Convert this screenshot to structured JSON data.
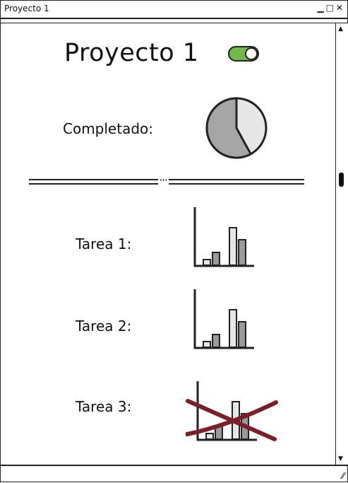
{
  "window": {
    "title": "Proyecto 1",
    "controls": {
      "minimize": "▁",
      "maximize": "□",
      "close": "✕"
    }
  },
  "main": {
    "heading": "Proyecto 1",
    "toggle_on": true,
    "completed_label": "Completado:",
    "pie_completed_fraction": 0.58,
    "tasks": [
      {
        "label": "Tarea 1:",
        "crossed_out": false
      },
      {
        "label": "Tarea 2:",
        "crossed_out": false
      },
      {
        "label": "Tarea 3:",
        "crossed_out": true
      }
    ]
  },
  "colors": {
    "toggle_on": "#6fb849",
    "pie_done": "#a6a6a6",
    "pie_remaining": "#e6e6e6",
    "cross_out": "#7b1f2a",
    "bar_light": "#e6e6e6",
    "bar_dark": "#9a9a9a"
  }
}
